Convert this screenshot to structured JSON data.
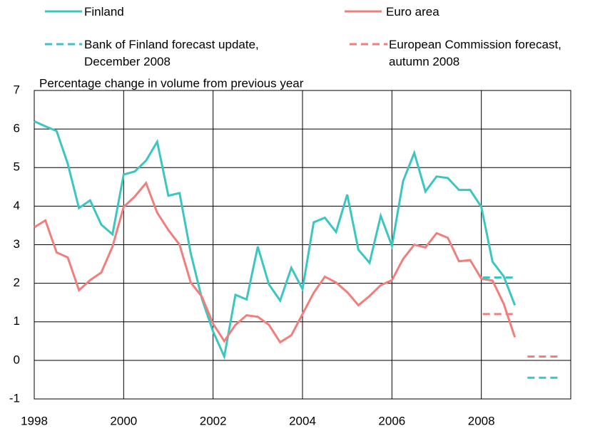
{
  "chart_data": {
    "type": "line",
    "axis_label": "Percentage change in volume from previous year",
    "xlim": [
      1998,
      2010
    ],
    "xticks": [
      1998,
      2000,
      2002,
      2004,
      2006,
      2008
    ],
    "ylim": [
      -1,
      7
    ],
    "yticks": [
      -1,
      0,
      1,
      2,
      3,
      4,
      5,
      6,
      7
    ],
    "grid": true,
    "series": [
      {
        "name": "Finland",
        "color": "#3cc6c2",
        "style": "solid",
        "x": [
          1998,
          1998.25,
          1998.5,
          1998.75,
          1999,
          1999.25,
          1999.5,
          1999.75,
          2000,
          2000.25,
          2000.5,
          2000.75,
          2001,
          2001.25,
          2001.5,
          2001.75,
          2002,
          2002.25,
          2002.5,
          2002.75,
          2003,
          2003.25,
          2003.5,
          2003.75,
          2004,
          2004.25,
          2004.5,
          2004.75,
          2005,
          2005.25,
          2005.5,
          2005.75,
          2006,
          2006.25,
          2006.5,
          2006.75,
          2007,
          2007.25,
          2007.5,
          2007.75,
          2008,
          2008.25,
          2008.5,
          2008.75
        ],
        "values": [
          6.2,
          6.07,
          5.95,
          5.1,
          3.95,
          4.15,
          3.52,
          3.27,
          4.82,
          4.9,
          5.18,
          5.67,
          4.27,
          4.34,
          2.78,
          1.6,
          0.75,
          0.1,
          1.7,
          1.58,
          2.95,
          1.97,
          1.55,
          2.4,
          1.85,
          3.58,
          3.7,
          3.33,
          4.3,
          2.87,
          2.53,
          3.75,
          2.97,
          4.65,
          5.38,
          4.38,
          4.77,
          4.73,
          4.42,
          4.42,
          3.98,
          2.56,
          2.18,
          1.43
        ]
      },
      {
        "name": "Euro area",
        "color": "#f27e7c",
        "style": "solid",
        "x": [
          1998,
          1998.25,
          1998.5,
          1998.75,
          1999,
          1999.25,
          1999.5,
          1999.75,
          2000,
          2000.25,
          2000.5,
          2000.75,
          2001,
          2001.25,
          2001.5,
          2001.75,
          2002,
          2002.25,
          2002.5,
          2002.75,
          2003,
          2003.25,
          2003.5,
          2003.75,
          2004,
          2004.25,
          2004.5,
          2004.75,
          2005,
          2005.25,
          2005.5,
          2005.75,
          2006,
          2006.25,
          2006.5,
          2006.75,
          2007,
          2007.25,
          2007.5,
          2007.75,
          2008,
          2008.25,
          2008.5,
          2008.75
        ],
        "values": [
          3.45,
          3.63,
          2.8,
          2.67,
          1.82,
          2.08,
          2.28,
          2.95,
          3.98,
          4.25,
          4.6,
          3.83,
          3.38,
          3.0,
          2.02,
          1.65,
          0.95,
          0.5,
          0.92,
          1.17,
          1.13,
          0.92,
          0.47,
          0.65,
          1.2,
          1.75,
          2.17,
          2.02,
          1.77,
          1.43,
          1.67,
          1.95,
          2.08,
          2.63,
          3.0,
          2.93,
          3.3,
          3.18,
          2.57,
          2.6,
          2.12,
          2.07,
          1.47,
          0.6
        ]
      },
      {
        "name": "Bank of Finland forecast update, December 2008",
        "color": "#3cc6c2",
        "style": "dashed",
        "x": [
          2008,
          2009
        ],
        "values": [
          2.15,
          -0.45
        ]
      },
      {
        "name": "European Commission forecast, autumn 2008",
        "color": "#f27e7c",
        "style": "dashed",
        "x": [
          2008,
          2009
        ],
        "values": [
          1.2,
          0.1
        ]
      }
    ]
  }
}
